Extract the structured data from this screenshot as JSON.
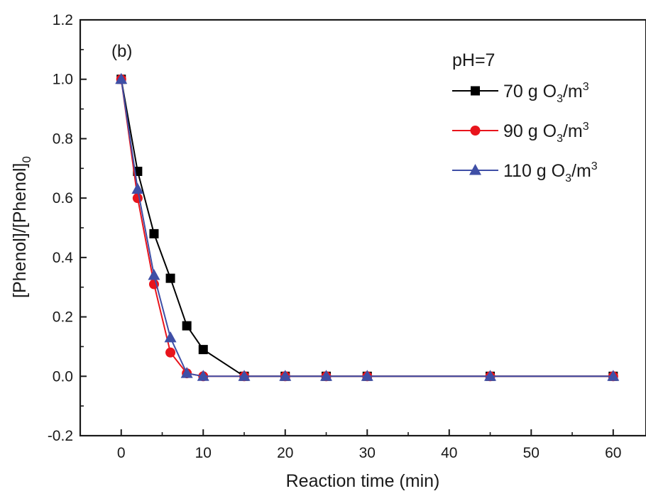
{
  "chart_data": {
    "type": "line",
    "panel_label": "(b)",
    "xlabel": "Reaction time (min)",
    "ylabel": "[Phenol]/[Phenol]",
    "ylabel_subscript": "0",
    "xlim": [
      -5,
      64
    ],
    "ylim": [
      -0.2,
      1.2
    ],
    "x_ticks": [
      0,
      10,
      20,
      30,
      40,
      50,
      60
    ],
    "y_ticks": [
      -0.2,
      0.0,
      0.2,
      0.4,
      0.6,
      0.8,
      1.0,
      1.2
    ],
    "x_tick_labels": [
      "0",
      "10",
      "20",
      "30",
      "40",
      "50",
      "60"
    ],
    "y_tick_labels": [
      "-0.2",
      "0.0",
      "0.2",
      "0.4",
      "0.6",
      "0.8",
      "1.0",
      "1.2"
    ],
    "grid": false,
    "legend": {
      "title": "pH=7",
      "placement": "top-right"
    },
    "series": [
      {
        "name": "70 g O3/m3",
        "label_parts": [
          "70 g O",
          "3",
          "/m",
          "3"
        ],
        "color": "#000000",
        "marker": "square",
        "x": [
          0,
          2,
          4,
          6,
          8,
          10,
          15,
          20,
          25,
          30,
          45,
          60
        ],
        "y": [
          1.0,
          0.69,
          0.48,
          0.33,
          0.17,
          0.09,
          0.0,
          0.0,
          0.0,
          0.0,
          0.0,
          0.0
        ]
      },
      {
        "name": "90 g O3/m3",
        "label_parts": [
          "90 g O",
          "3",
          "/m",
          "3"
        ],
        "color": "#e8141c",
        "marker": "circle",
        "x": [
          0,
          2,
          4,
          6,
          8,
          10,
          15,
          20,
          25,
          30,
          45,
          60
        ],
        "y": [
          1.0,
          0.6,
          0.31,
          0.08,
          0.01,
          0.0,
          0.0,
          0.0,
          0.0,
          0.0,
          0.0,
          0.0
        ]
      },
      {
        "name": "110 g O3/m3",
        "label_parts": [
          "110 g O",
          "3",
          "/m",
          "3"
        ],
        "color": "#3f4fa6",
        "marker": "triangle",
        "x": [
          0,
          2,
          4,
          6,
          8,
          10,
          15,
          20,
          25,
          30,
          45,
          60
        ],
        "y": [
          1.0,
          0.63,
          0.34,
          0.13,
          0.01,
          0.0,
          0.0,
          0.0,
          0.0,
          0.0,
          0.0,
          0.0
        ]
      }
    ]
  }
}
